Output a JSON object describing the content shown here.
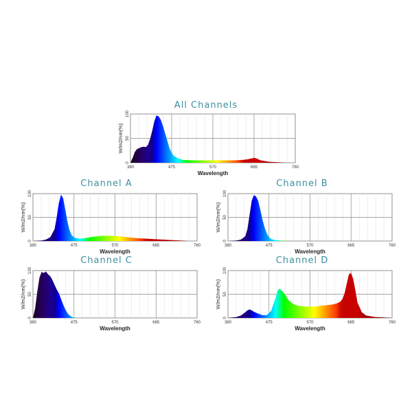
{
  "chart_data": [
    {
      "type": "area",
      "title": "All Channels",
      "xlabel": "Wavelength",
      "ylabel": "W/m2/nm(%)",
      "xlim": [
        380,
        760
      ],
      "ylim": [
        0,
        100
      ],
      "x_ticks": [
        "380",
        "475",
        "570",
        "665",
        "760"
      ],
      "y_ticks": [
        "0",
        "50",
        "100"
      ],
      "grid": true,
      "series": [
        {
          "x": [
            380,
            385,
            390,
            395,
            400,
            405,
            410,
            415,
            420,
            425,
            430,
            435,
            440,
            445,
            450,
            455,
            460,
            465,
            470,
            475,
            480,
            490,
            500,
            520,
            540,
            560,
            580,
            600,
            620,
            640,
            650,
            655,
            660,
            665,
            670,
            680,
            700,
            720,
            740,
            760
          ],
          "values": [
            0,
            10,
            22,
            28,
            30,
            32,
            33,
            32,
            36,
            48,
            65,
            85,
            97,
            95,
            88,
            75,
            60,
            45,
            30,
            20,
            14,
            9,
            6,
            5,
            5,
            5,
            5,
            5,
            5,
            6,
            7,
            8,
            9,
            10,
            9,
            5,
            2,
            1,
            0,
            0
          ]
        }
      ]
    },
    {
      "type": "area",
      "title": "Channel A",
      "xlabel": "Wavelength",
      "ylabel": "W/m2/nm(%)",
      "xlim": [
        380,
        760
      ],
      "ylim": [
        0,
        100
      ],
      "x_ticks": [
        "380",
        "475",
        "570",
        "665",
        "760"
      ],
      "y_ticks": [
        "0",
        "50",
        "100"
      ],
      "grid": true,
      "series": [
        {
          "x": [
            380,
            400,
            410,
            420,
            430,
            435,
            440,
            445,
            450,
            455,
            460,
            465,
            470,
            475,
            480,
            490,
            500,
            520,
            540,
            560,
            580,
            600,
            620,
            640,
            660,
            680,
            700,
            720,
            740,
            760
          ],
          "values": [
            0,
            1,
            3,
            8,
            25,
            50,
            80,
            98,
            90,
            65,
            40,
            22,
            12,
            8,
            6,
            5,
            6,
            9,
            11,
            11,
            10,
            8,
            6,
            5,
            4,
            3,
            2,
            1,
            0,
            0
          ]
        }
      ]
    },
    {
      "type": "area",
      "title": "Channel B",
      "xlabel": "Wavelength",
      "ylabel": "W/m2/nm(%)",
      "xlim": [
        380,
        760
      ],
      "ylim": [
        0,
        100
      ],
      "x_ticks": [
        "380",
        "475",
        "570",
        "665",
        "760"
      ],
      "y_ticks": [
        "0",
        "50",
        "100"
      ],
      "grid": true,
      "series": [
        {
          "x": [
            380,
            400,
            410,
            420,
            425,
            430,
            435,
            440,
            445,
            450,
            455,
            460,
            465,
            470,
            475,
            480,
            490,
            500,
            520,
            540,
            560,
            580
          ],
          "values": [
            0,
            1,
            3,
            10,
            25,
            55,
            85,
            97,
            94,
            85,
            65,
            45,
            28,
            16,
            8,
            4,
            2,
            1,
            0,
            0,
            0,
            0
          ]
        }
      ]
    },
    {
      "type": "area",
      "title": "Channel C",
      "xlabel": "Wavelength",
      "ylabel": "W/m2/nm(%)",
      "xlim": [
        380,
        760
      ],
      "ylim": [
        0,
        100
      ],
      "x_ticks": [
        "380",
        "475",
        "570",
        "665",
        "760"
      ],
      "y_ticks": [
        "0",
        "50",
        "100"
      ],
      "grid": true,
      "series": [
        {
          "x": [
            380,
            385,
            390,
            395,
            400,
            405,
            410,
            415,
            420,
            425,
            430,
            435,
            440,
            445,
            450,
            455,
            460,
            465,
            470,
            475,
            480,
            490
          ],
          "values": [
            0,
            20,
            55,
            85,
            97,
            95,
            98,
            92,
            88,
            80,
            70,
            60,
            52,
            40,
            28,
            18,
            10,
            5,
            2,
            1,
            0,
            0
          ]
        }
      ]
    },
    {
      "type": "area",
      "title": "Channel D",
      "xlabel": "Wavelength",
      "ylabel": "W/m2/nm(%)",
      "xlim": [
        380,
        760
      ],
      "ylim": [
        0,
        100
      ],
      "x_ticks": [
        "380",
        "475",
        "570",
        "665",
        "760"
      ],
      "y_ticks": [
        "0",
        "50",
        "100"
      ],
      "grid": true,
      "series": [
        {
          "x": [
            380,
            400,
            410,
            420,
            425,
            430,
            435,
            440,
            450,
            460,
            470,
            480,
            490,
            495,
            500,
            510,
            520,
            530,
            540,
            560,
            580,
            600,
            620,
            630,
            640,
            645,
            650,
            655,
            660,
            665,
            670,
            675,
            680,
            690,
            700,
            720,
            740,
            760
          ],
          "values": [
            0,
            2,
            5,
            12,
            16,
            18,
            16,
            13,
            9,
            6,
            6,
            15,
            42,
            58,
            62,
            52,
            38,
            30,
            26,
            24,
            24,
            26,
            28,
            30,
            34,
            40,
            52,
            72,
            92,
            95,
            82,
            58,
            32,
            12,
            5,
            2,
            1,
            0
          ]
        }
      ]
    }
  ]
}
